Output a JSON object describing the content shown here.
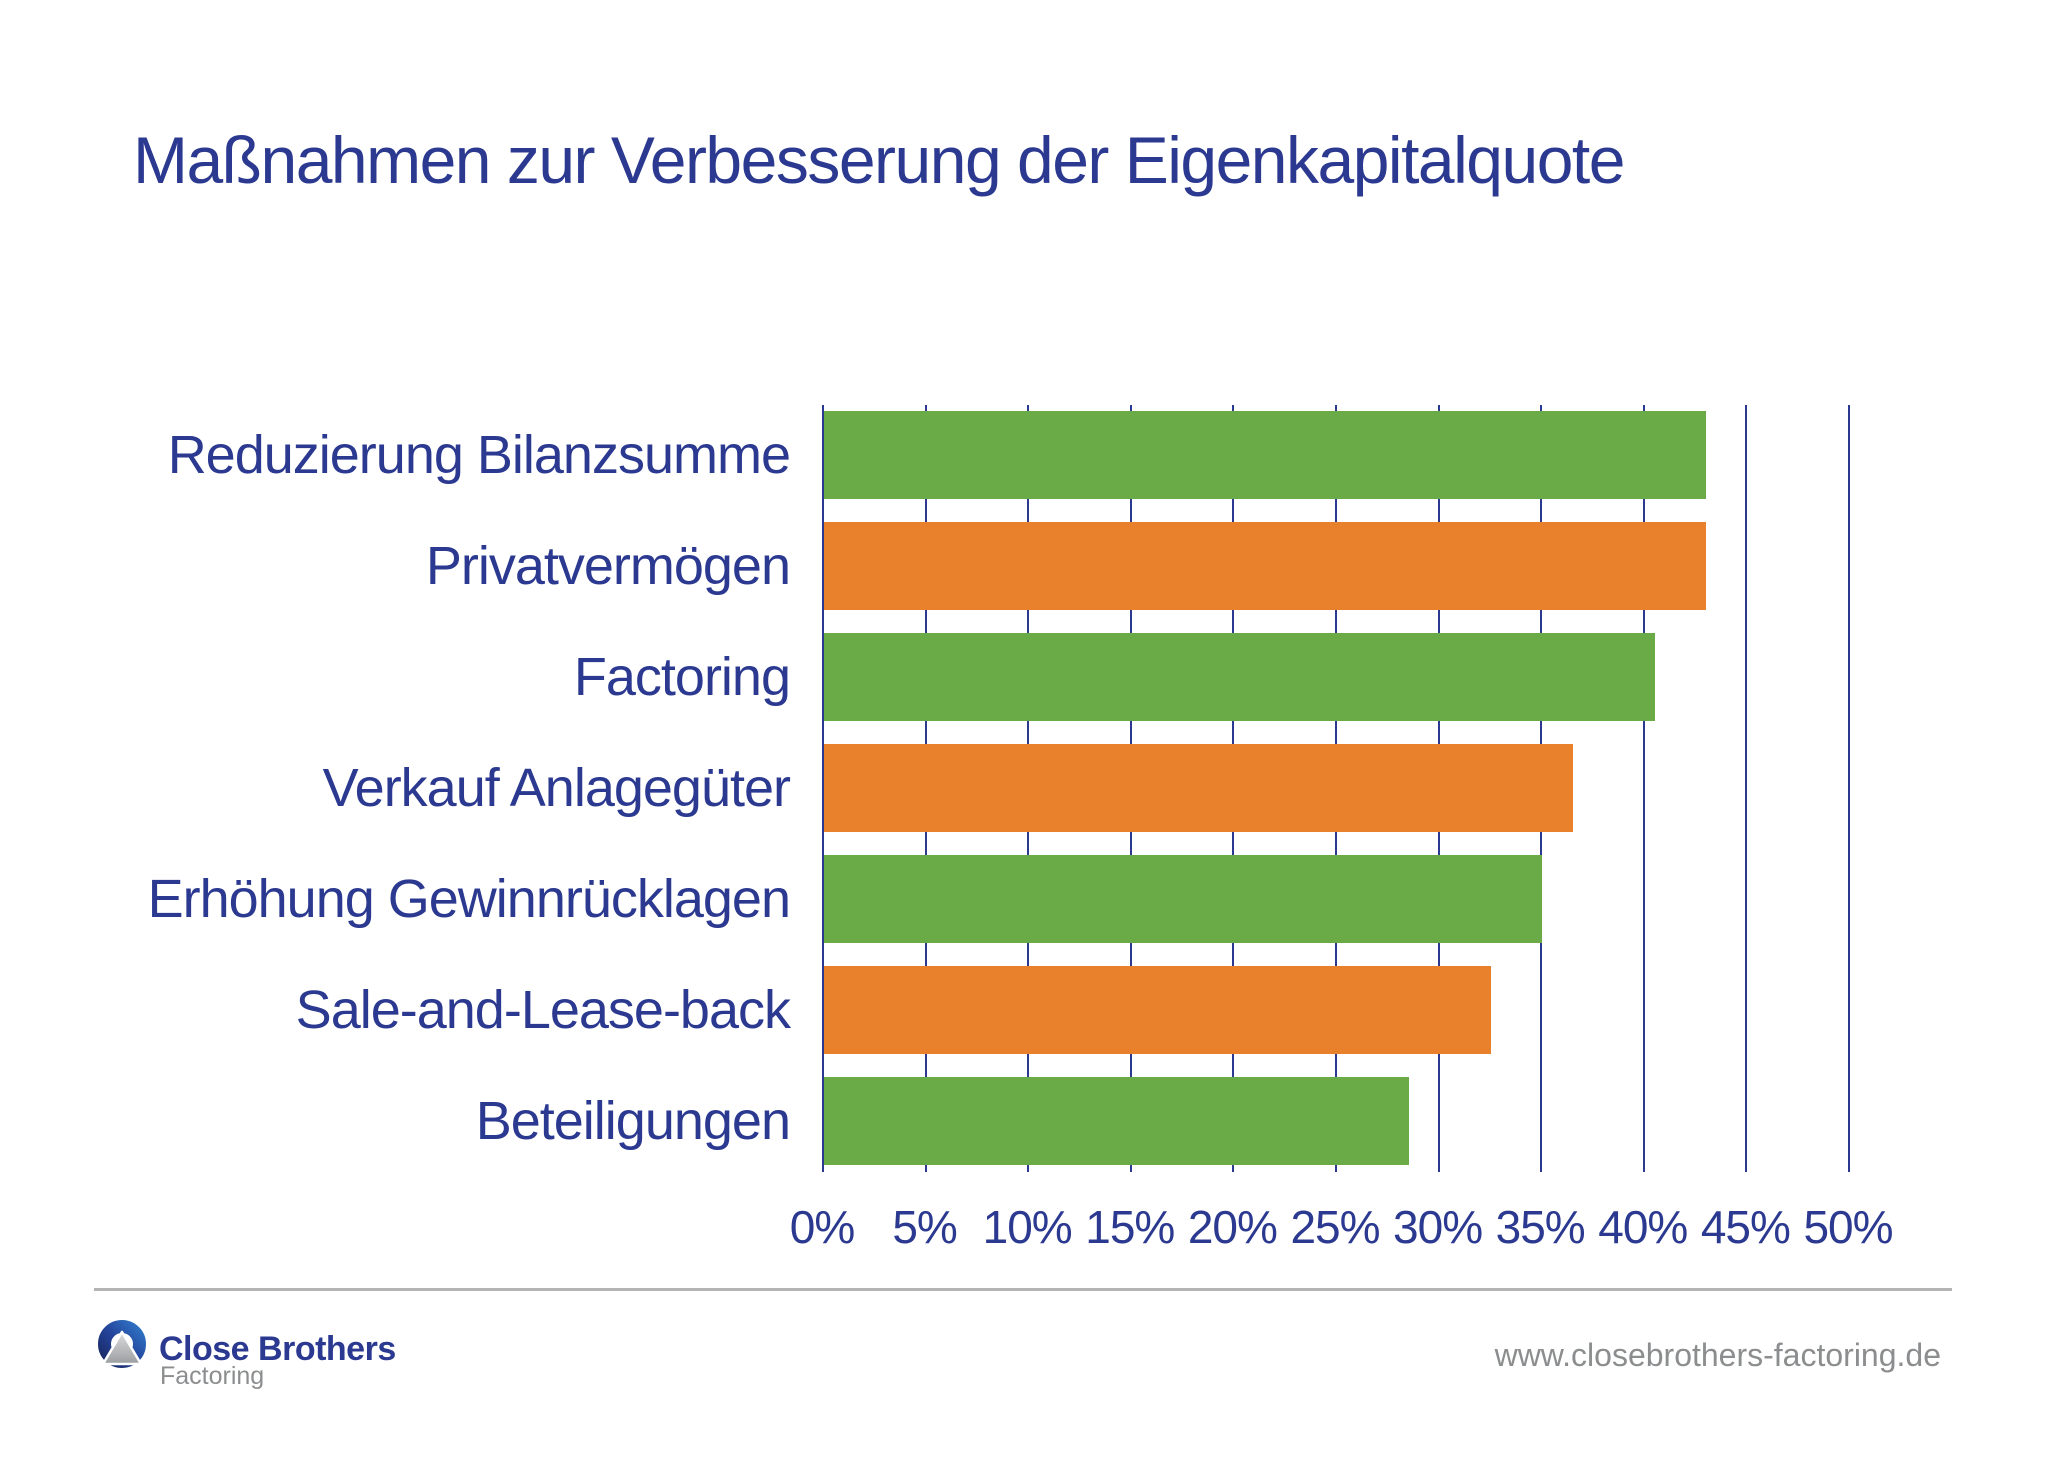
{
  "page": {
    "title": "Maßnahmen zur Verbesserung der Eigenkapitalquote"
  },
  "chart_data": {
    "type": "bar",
    "orientation": "horizontal",
    "title": "Maßnahmen zur Verbesserung der Eigenkapitalquote",
    "categories": [
      "Reduzierung Bilanzsumme",
      "Privatvermögen",
      "Factoring",
      "Verkauf Anlagegüter",
      "Erhöhung Gewinnrücklagen",
      "Sale-and-Lease-back",
      "Beteiligungen"
    ],
    "values": [
      43,
      43,
      40.5,
      36.5,
      35,
      32.5,
      28.5
    ],
    "unit": "%",
    "xlabel": "",
    "ylabel": "",
    "xlim": [
      0,
      50
    ],
    "x_tick_step": 5,
    "x_tick_labels": [
      "0%",
      "5%",
      "10%",
      "15%",
      "20%",
      "25%",
      "30%",
      "35%",
      "40%",
      "45%",
      "50%"
    ],
    "grid": "vertical-gridlines-on",
    "legend": "none",
    "bar_colors": [
      "#6aab47",
      "#e8802c",
      "#6aab47",
      "#e8802c",
      "#6aab47",
      "#e8802c",
      "#6aab47"
    ]
  },
  "colors": {
    "accent_blue": "#2b3990",
    "bar_green": "#6aab47",
    "bar_orange": "#e8802c",
    "gridline_blue": "#2b3990",
    "text_gray": "#8b8d8e",
    "divider_gray": "#b4b4b4"
  },
  "footer": {
    "logo_name": "Close Brothers",
    "logo_subtitle": "Factoring",
    "logo_icon": "close-brothers-ring-mountain-icon",
    "website": "www.closebrothers-factoring.de"
  }
}
